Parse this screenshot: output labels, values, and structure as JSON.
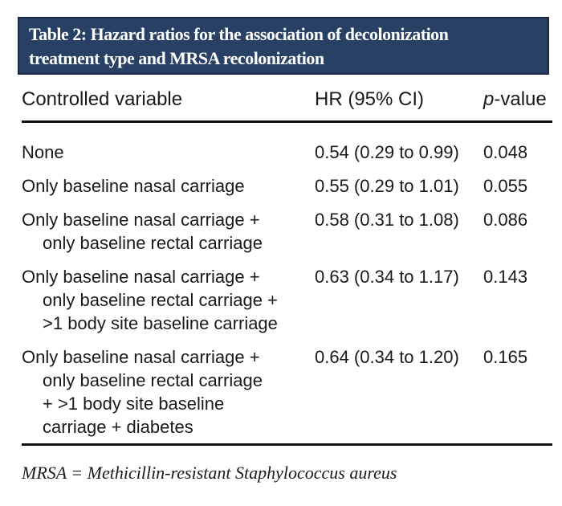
{
  "header": {
    "title_line1": "Table 2: Hazard ratios for the association of decolonization",
    "title_line2": "treatment type and MRSA recolonization"
  },
  "colors": {
    "header_bg": "#274063",
    "header_border": "#1a2945",
    "rule": "#101010",
    "header_text": "#ffffff",
    "body_text": "#1a1a1a"
  },
  "table": {
    "columns": {
      "variable": "Controlled variable",
      "hr": "HR (95% CI)",
      "p_prefix": "p",
      "p_suffix": "-value"
    },
    "rows": [
      {
        "variable_lines": [
          "None"
        ],
        "hr": "0.54 (0.29 to 0.99)",
        "p": "0.048"
      },
      {
        "variable_lines": [
          "Only baseline nasal carriage"
        ],
        "hr": "0.55 (0.29 to 1.01)",
        "p": "0.055"
      },
      {
        "variable_lines": [
          "Only baseline nasal carriage +",
          "only baseline rectal carriage"
        ],
        "hr": "0.58 (0.31 to 1.08)",
        "p": "0.086"
      },
      {
        "variable_lines": [
          "Only baseline nasal carriage +",
          "only baseline rectal carriage +",
          ">1 body site baseline carriage"
        ],
        "hr": "0.63 (0.34 to 1.17)",
        "p": "0.143"
      },
      {
        "variable_lines": [
          "Only baseline nasal carriage +",
          "only baseline rectal carriage",
          "+ >1 body site baseline",
          "carriage + diabetes"
        ],
        "hr": "0.64 (0.34 to 1.20)",
        "p": "0.165"
      }
    ]
  },
  "footnote": {
    "text": "MRSA = Methicillin-resistant Staphylococcus aureus"
  }
}
